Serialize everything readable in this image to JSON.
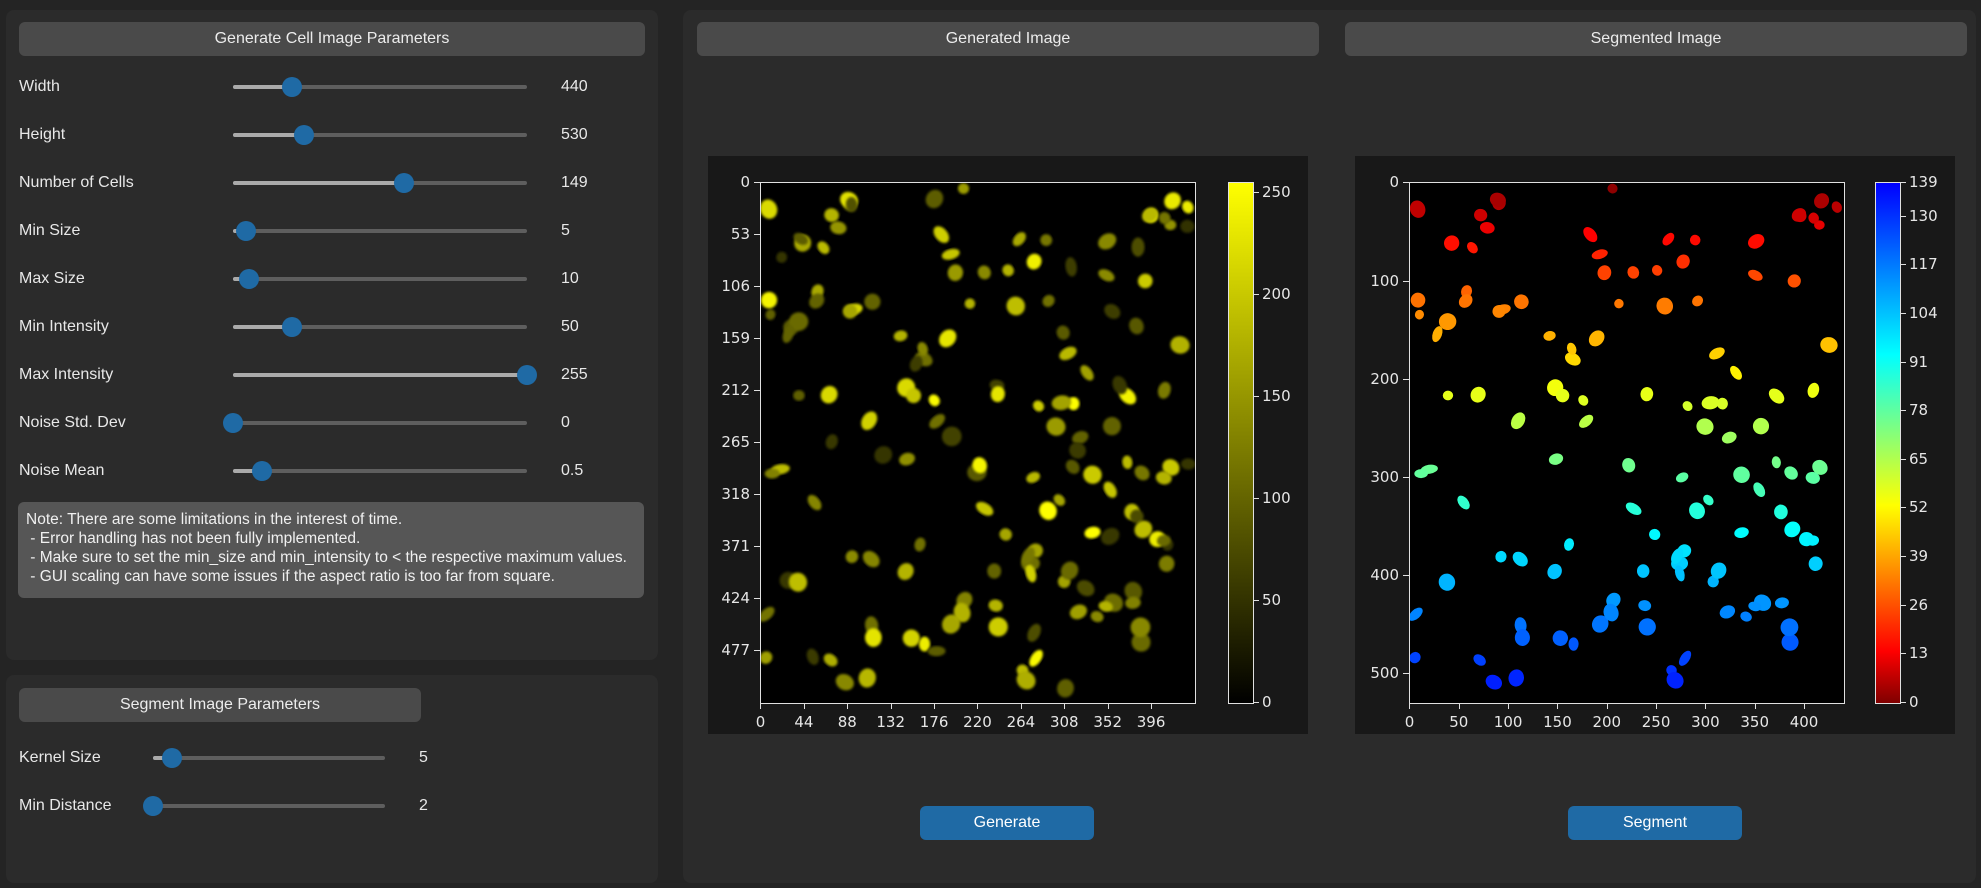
{
  "generate_panel": {
    "header": "Generate Cell Image Parameters",
    "sliders": [
      {
        "label": "Width",
        "value": "440",
        "fraction": 0.2
      },
      {
        "label": "Height",
        "value": "530",
        "fraction": 0.24
      },
      {
        "label": "Number of Cells",
        "value": "149",
        "fraction": 0.58
      },
      {
        "label": "Min Size",
        "value": "5",
        "fraction": 0.045
      },
      {
        "label": "Max Size",
        "value": "10",
        "fraction": 0.055
      },
      {
        "label": "Min Intensity",
        "value": "50",
        "fraction": 0.2
      },
      {
        "label": "Max Intensity",
        "value": "255",
        "fraction": 1.0
      },
      {
        "label": "Noise Std. Dev",
        "value": "0",
        "fraction": 0.0
      },
      {
        "label": "Noise Mean",
        "value": "0.5",
        "fraction": 0.1
      }
    ],
    "note": "Note: There are some limitations in the interest of time.\n - Error handling has not been fully implemented.\n - Make sure to set the min_size and min_intensity to < the respective maximum values.\n - GUI scaling can have some issues if the aspect ratio is too far from square."
  },
  "segment_panel": {
    "header": "Segment Image Parameters",
    "sliders": [
      {
        "label": "Kernel Size",
        "value": "5",
        "fraction": 0.08
      },
      {
        "label": "Min Distance",
        "value": "2",
        "fraction": 0.0
      }
    ]
  },
  "generated_view": {
    "header": "Generated Image",
    "y_ticks": [
      "0",
      "53",
      "106",
      "159",
      "212",
      "265",
      "318",
      "371",
      "424",
      "477"
    ],
    "x_ticks": [
      "0",
      "44",
      "88",
      "132",
      "176",
      "220",
      "264",
      "308",
      "352",
      "396"
    ],
    "colorbar_ticks": [
      "0",
      "50",
      "100",
      "150",
      "200",
      "250"
    ],
    "button": "Generate"
  },
  "segmented_view": {
    "header": "Segmented Image",
    "y_ticks": [
      "0",
      "100",
      "200",
      "300",
      "400",
      "500"
    ],
    "x_ticks": [
      "0",
      "50",
      "100",
      "150",
      "200",
      "250",
      "300",
      "350",
      "400"
    ],
    "colorbar_ticks": [
      "0",
      "13",
      "26",
      "39",
      "52",
      "65",
      "78",
      "91",
      "104",
      "117",
      "130",
      "139"
    ],
    "button": "Segment"
  },
  "colors": {
    "accent": "#1f6aa5",
    "panel": "#2b2b2b",
    "background": "#242424"
  }
}
